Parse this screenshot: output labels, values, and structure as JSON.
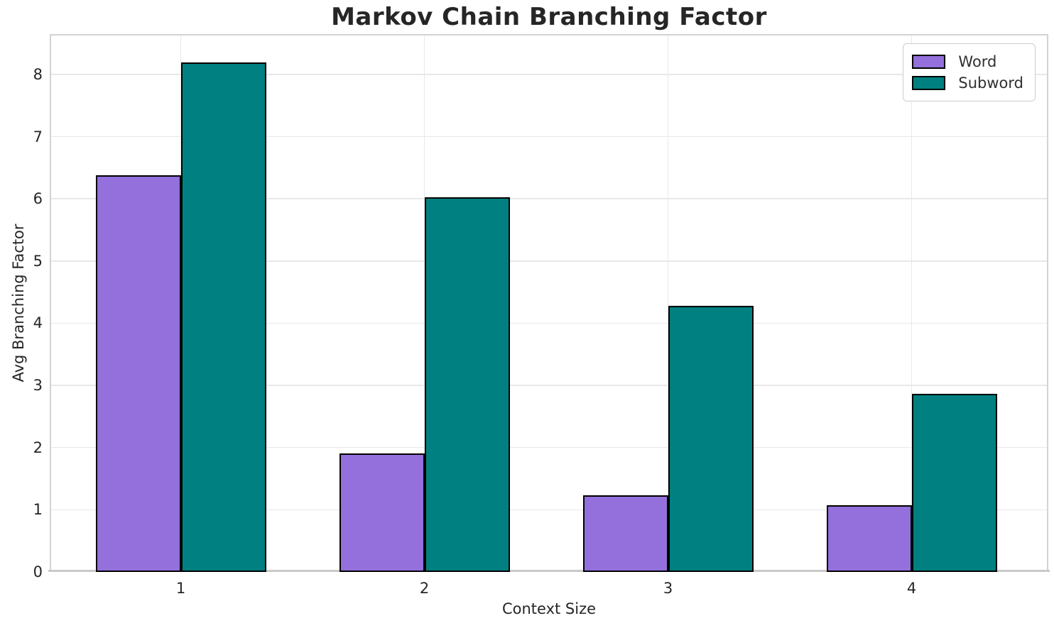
{
  "figure": {
    "background": "#ffffff"
  },
  "chart_data": {
    "type": "bar",
    "title": "Markov Chain Branching Factor",
    "xlabel": "Context Size",
    "ylabel": "Avg Branching Factor",
    "categories": [
      "1",
      "2",
      "3",
      "4"
    ],
    "series": [
      {
        "name": "Word",
        "color": "#9370DB",
        "values": [
          6.38,
          1.91,
          1.23,
          1.07
        ]
      },
      {
        "name": "Subword",
        "color": "#008080",
        "values": [
          8.19,
          6.03,
          4.28,
          2.86
        ]
      }
    ],
    "ylim": [
      0,
      8.65
    ],
    "yticks": [
      "0",
      "1",
      "2",
      "3",
      "4",
      "5",
      "6",
      "7",
      "8"
    ],
    "grid": true,
    "legend_position": "upper right",
    "colors": {
      "bar_edge": "#000000",
      "grid": "#e8e8e8",
      "spine": "#d3d3d3",
      "spine_bottom": "#c9c9c9",
      "text": "#262626",
      "legend_border": "#cccccc",
      "legend_bg": "#ffffff"
    }
  }
}
